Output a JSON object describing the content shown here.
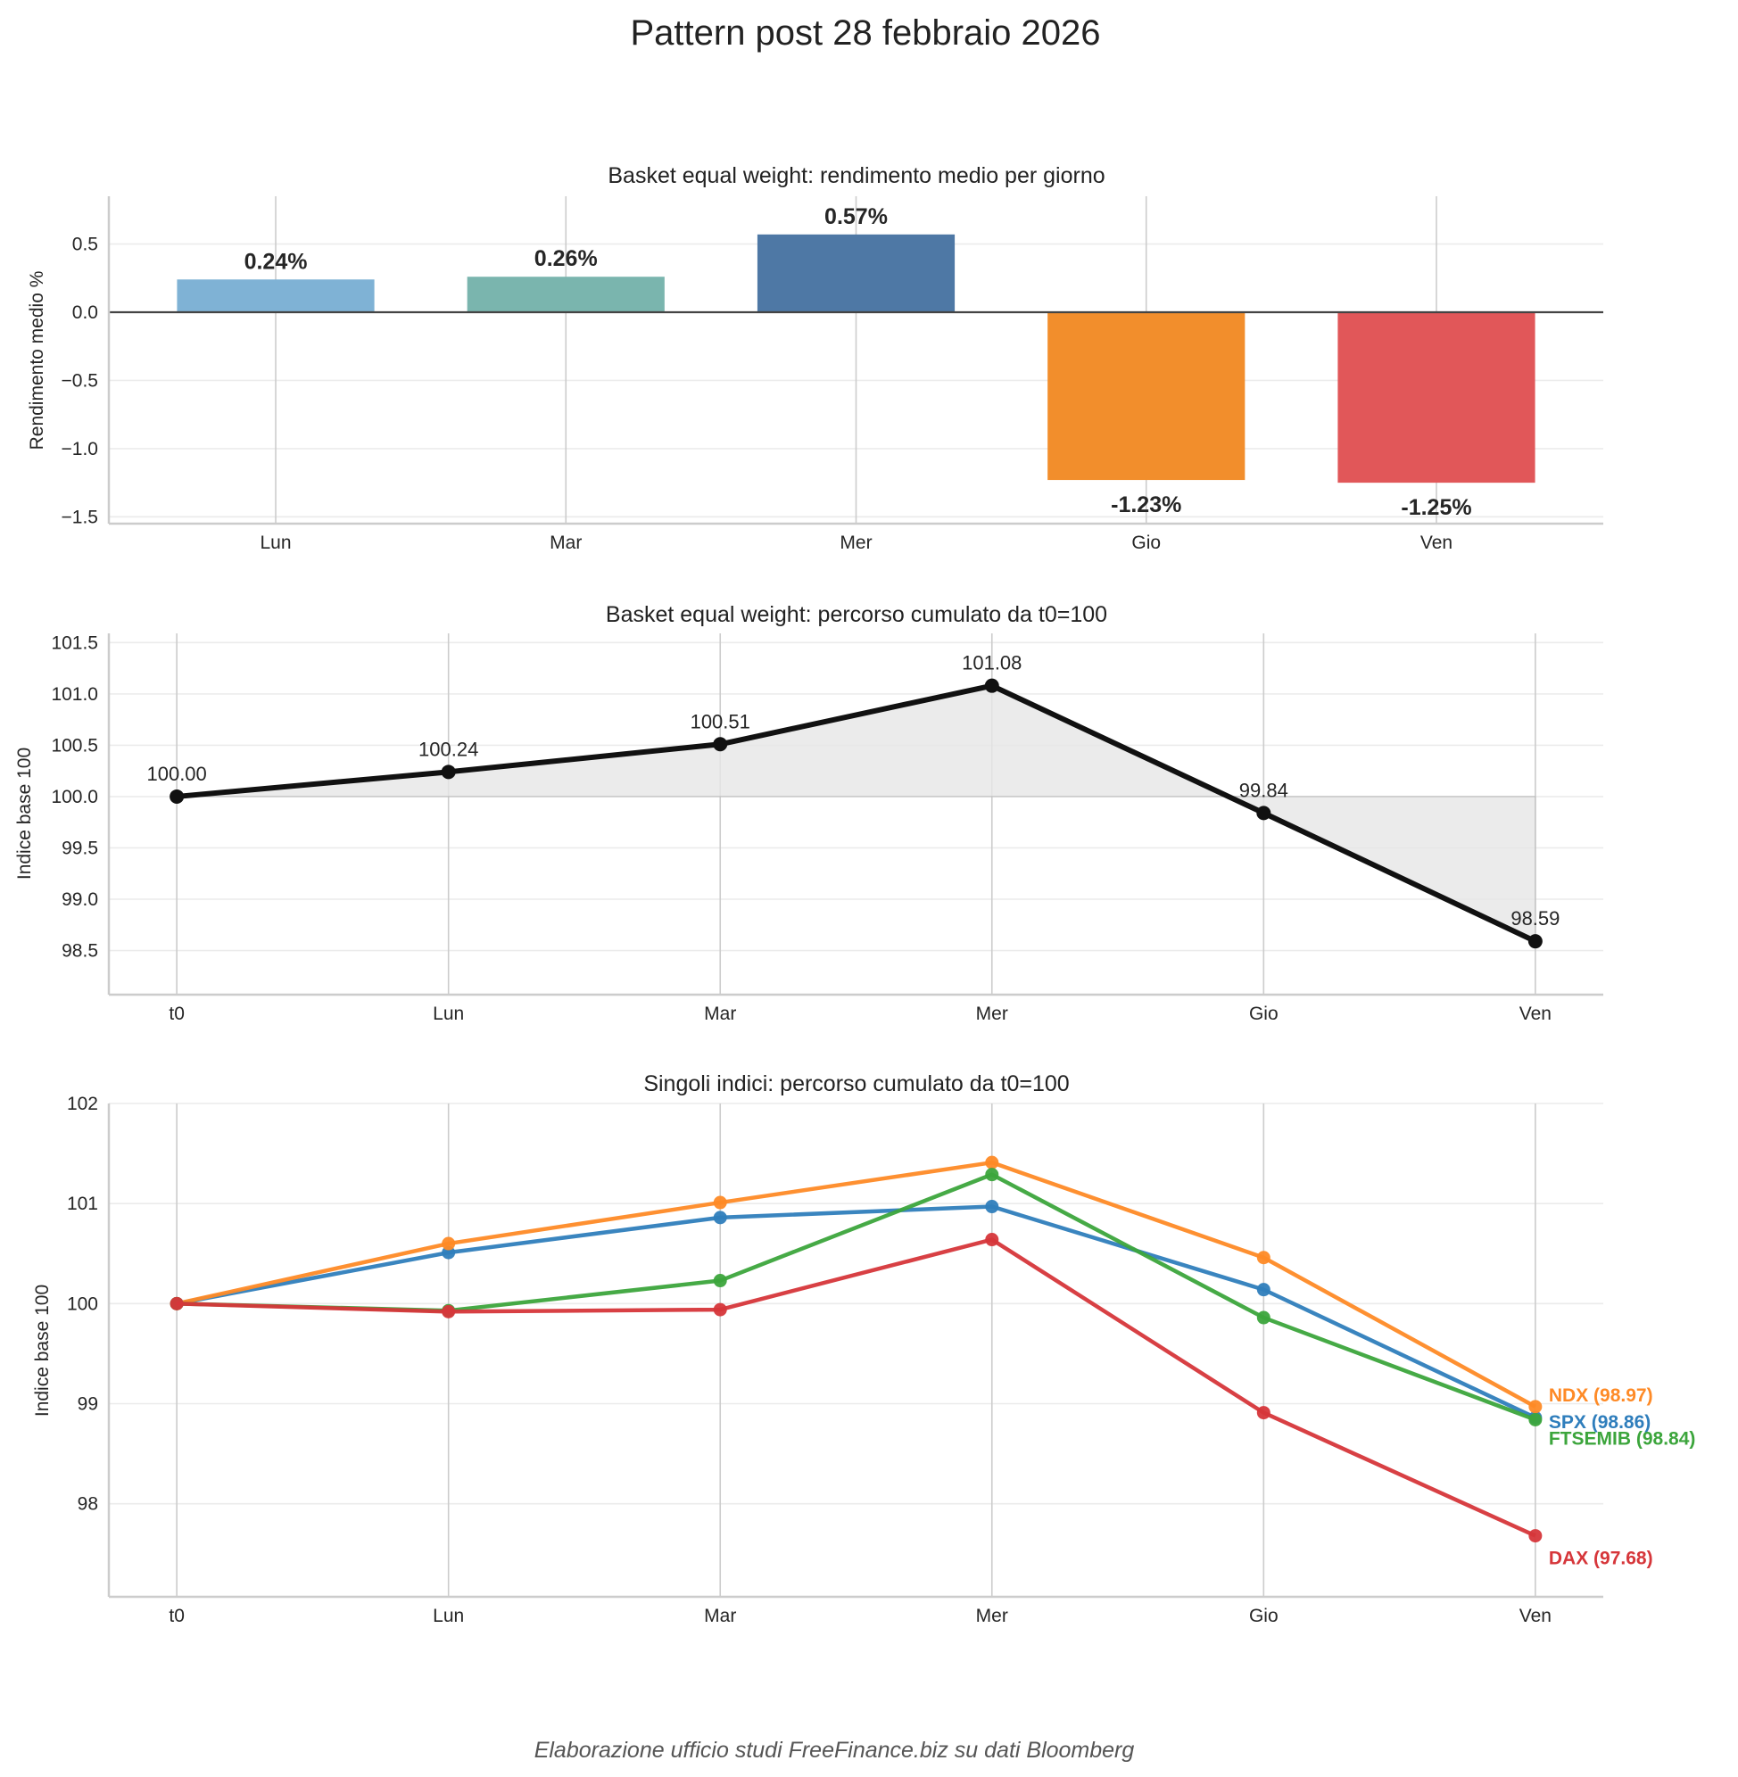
{
  "figure": {
    "title": "Pattern post 28 febbraio 2026",
    "footer": "Elaborazione ufficio studi FreeFinance.biz su dati Bloomberg"
  },
  "chart_data": [
    {
      "type": "bar",
      "title": "Basket equal weight: rendimento medio per giorno",
      "xlabel": "",
      "ylabel": "Rendimento medio %",
      "categories": [
        "Lun",
        "Mar",
        "Mer",
        "Gio",
        "Ven"
      ],
      "values": [
        0.24,
        0.26,
        0.57,
        -1.23,
        -1.25
      ],
      "data_labels": [
        "0.24%",
        "0.26%",
        "0.57%",
        "-1.23%",
        "-1.25%"
      ],
      "colors": [
        "#7fb2d5",
        "#7ab5ae",
        "#4e78a5",
        "#f28e2c",
        "#e15759"
      ],
      "yticks": [
        0.5,
        0.0,
        -0.5,
        -1.0,
        -1.5
      ],
      "ytick_labels": [
        "0.5",
        "0.0",
        "−0.5",
        "−1.0",
        "−1.5"
      ],
      "ylim": [
        -1.55,
        0.85
      ],
      "zero_line": true,
      "grid": true
    },
    {
      "type": "area",
      "title": "Basket equal weight: percorso cumulato da t0=100",
      "xlabel": "",
      "ylabel": "Indice base 100",
      "categories": [
        "t0",
        "Lun",
        "Mar",
        "Mer",
        "Gio",
        "Ven"
      ],
      "values": [
        100.0,
        100.24,
        100.51,
        101.08,
        99.84,
        98.59
      ],
      "data_labels": [
        "100.00",
        "100.24",
        "100.51",
        "101.08",
        "99.84",
        "98.59"
      ],
      "baseline": 100,
      "line_color": "#111111",
      "fill_color": "#e6e6e6",
      "yticks": [
        101.5,
        101.0,
        100.5,
        100.0,
        99.5,
        99.0,
        98.5
      ],
      "ytick_labels": [
        "101.5",
        "101.0",
        "100.5",
        "100.0",
        "99.5",
        "99.0",
        "98.5"
      ],
      "ylim": [
        98.07,
        101.59
      ],
      "grid": true
    },
    {
      "type": "line",
      "title": "Singoli indici: percorso cumulato da t0=100",
      "xlabel": "",
      "ylabel": "Indice base 100",
      "categories": [
        "t0",
        "Lun",
        "Mar",
        "Mer",
        "Gio",
        "Ven"
      ],
      "series": [
        {
          "name": "SPX",
          "color": "#2f7ebc",
          "values": [
            100.0,
            100.51,
            100.86,
            100.97,
            100.14,
            98.86
          ],
          "end_label": "SPX (98.86)"
        },
        {
          "name": "NDX",
          "color": "#fe8a26",
          "values": [
            100.0,
            100.6,
            101.01,
            101.41,
            100.46,
            98.97
          ],
          "end_label": "NDX (98.97)"
        },
        {
          "name": "FTSEMIB",
          "color": "#3ca53c",
          "values": [
            100.0,
            99.93,
            100.23,
            101.29,
            99.86,
            98.84
          ],
          "end_label": "FTSEMIB (98.84)"
        },
        {
          "name": "DAX",
          "color": "#d6363a",
          "values": [
            100.0,
            99.92,
            99.94,
            100.64,
            98.91,
            97.68
          ],
          "end_label": "DAX (97.68)"
        }
      ],
      "yticks": [
        102,
        101,
        100,
        99,
        98
      ],
      "ytick_labels": [
        "102",
        "101",
        "100",
        "99",
        "98"
      ],
      "ylim": [
        97.07,
        102.0
      ],
      "legend": "end-of-line labels (right)",
      "grid": true
    }
  ]
}
